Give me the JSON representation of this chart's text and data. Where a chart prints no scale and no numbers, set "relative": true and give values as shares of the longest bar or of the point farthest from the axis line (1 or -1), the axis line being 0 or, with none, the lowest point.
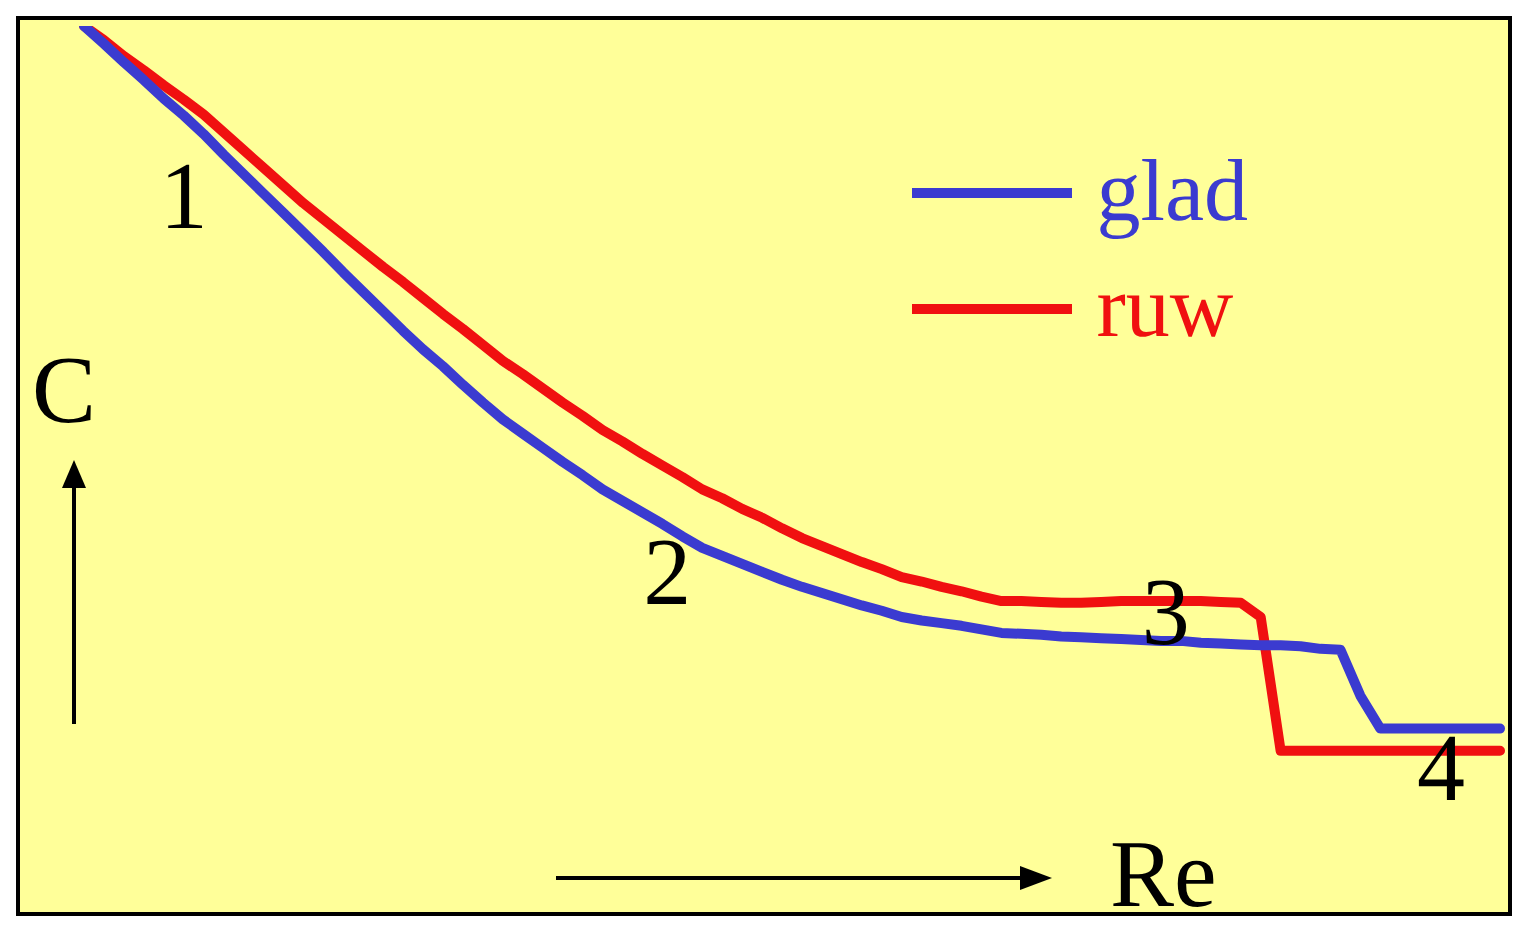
{
  "chart_data": {
    "type": "line",
    "relative": true,
    "xlabel": "Re",
    "ylabel": "C",
    "legend": "top right",
    "marker": "none",
    "line_style": "solid",
    "categories": [
      null,
      null,
      null,
      null,
      null,
      null,
      null,
      null,
      null,
      null,
      null,
      null,
      null,
      null,
      null,
      null,
      null,
      null,
      null,
      null,
      null,
      null,
      null,
      null,
      null,
      null,
      null,
      null,
      null,
      null,
      null,
      null,
      null,
      null,
      null,
      null,
      null,
      null,
      null,
      null,
      null,
      null,
      null,
      null,
      null,
      null,
      null,
      null,
      null,
      null,
      null,
      null,
      null,
      null,
      null,
      null,
      null,
      null,
      null,
      null,
      null,
      null,
      null,
      null,
      null,
      null,
      null,
      null,
      null,
      null,
      null,
      null
    ],
    "series": [
      {
        "name": "glad",
        "color": "#3b3bd0",
        "values": [
          1.0,
          0.98,
          0.959,
          0.939,
          0.918,
          0.899,
          0.878,
          0.855,
          0.833,
          0.811,
          0.789,
          0.767,
          0.745,
          0.722,
          0.7,
          0.678,
          0.656,
          0.635,
          0.616,
          0.595,
          0.575,
          0.556,
          0.54,
          0.524,
          0.508,
          0.493,
          0.477,
          0.464,
          0.451,
          0.438,
          0.424,
          0.411,
          0.402,
          0.393,
          0.384,
          0.375,
          0.367,
          0.36,
          0.353,
          0.346,
          0.34,
          0.333,
          0.329,
          0.326,
          0.323,
          0.319,
          0.315,
          0.314,
          0.313,
          0.311,
          0.31,
          0.309,
          0.308,
          0.307,
          0.306,
          0.306,
          0.304,
          0.303,
          0.302,
          0.301,
          0.301,
          0.3,
          0.297,
          0.296,
          0.244,
          0.207,
          0.207,
          0.207,
          0.207,
          0.207,
          0.207,
          0.207
        ]
      },
      {
        "name": "ruw",
        "color": "#f01010",
        "values": [
          1.0,
          0.984,
          0.966,
          0.95,
          0.933,
          0.917,
          0.9,
          0.88,
          0.86,
          0.84,
          0.82,
          0.8,
          0.782,
          0.764,
          0.746,
          0.728,
          0.711,
          0.693,
          0.675,
          0.658,
          0.64,
          0.622,
          0.607,
          0.591,
          0.575,
          0.56,
          0.544,
          0.531,
          0.517,
          0.504,
          0.491,
          0.477,
          0.467,
          0.455,
          0.445,
          0.433,
          0.422,
          0.413,
          0.404,
          0.395,
          0.387,
          0.378,
          0.373,
          0.367,
          0.362,
          0.356,
          0.351,
          0.351,
          0.35,
          0.349,
          0.349,
          0.35,
          0.351,
          0.351,
          0.351,
          0.351,
          0.351,
          0.35,
          0.349,
          0.333,
          0.182,
          0.182,
          0.182,
          0.182,
          0.182,
          0.182,
          0.182,
          0.182,
          0.182,
          0.182,
          0.182,
          0.182
        ]
      }
    ],
    "annotations": [
      "1",
      "2",
      "3",
      "4"
    ]
  }
}
